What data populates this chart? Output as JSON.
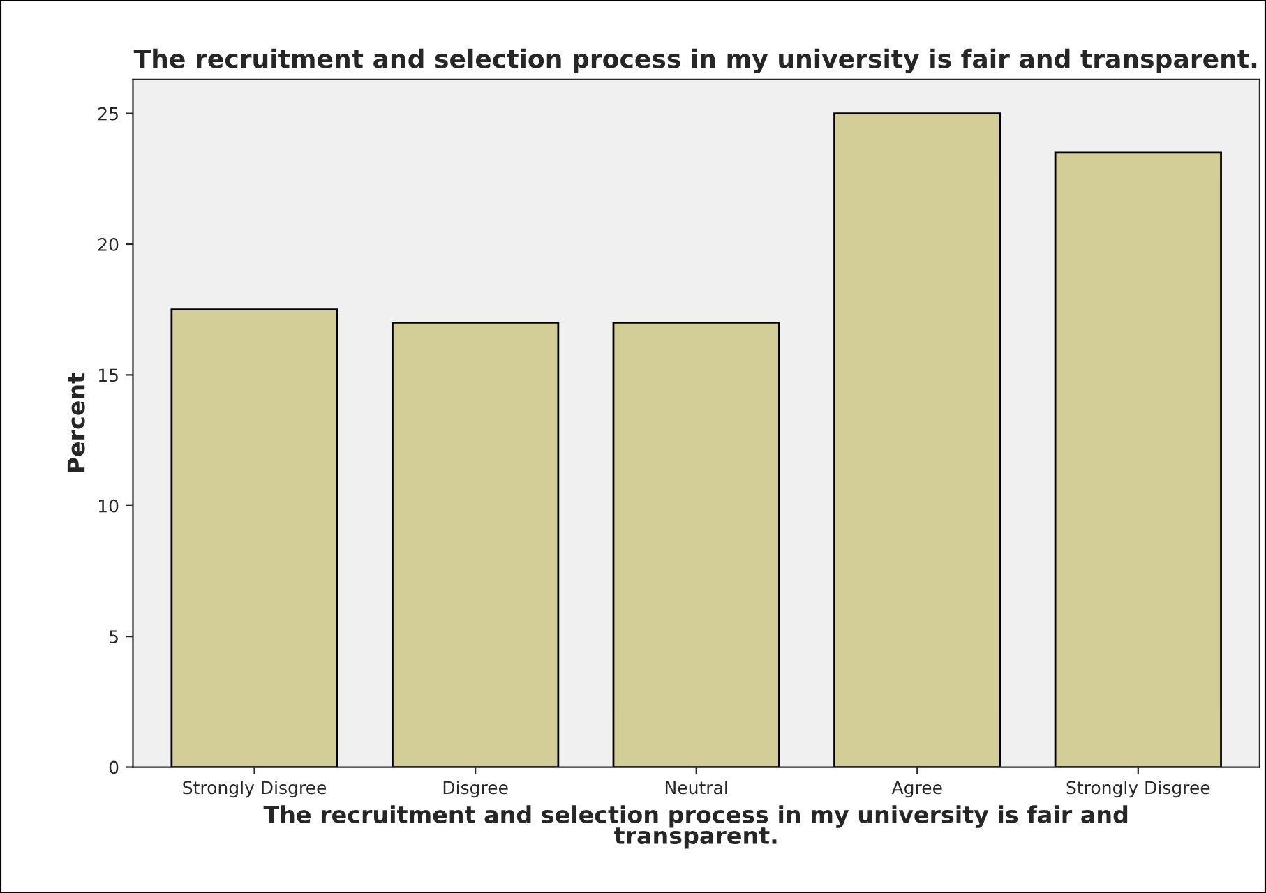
{
  "chart_data": {
    "type": "bar",
    "title": "The recruitment and selection process in my university is fair and transparent.",
    "xlabel": "The recruitment and selection process in my university is fair and\ntransparent.",
    "ylabel": "Percent",
    "categories": [
      "Strongly Disgree",
      "Disgree",
      "Neutral",
      "Agree",
      "Strongly Disgree"
    ],
    "values": [
      17.5,
      17.0,
      17.0,
      25.0,
      23.5
    ],
    "color": "#d3ce98",
    "ylim": [
      0,
      26.3
    ],
    "yticks": [
      0,
      5,
      10,
      15,
      20,
      25
    ],
    "grid": false,
    "legend": false
  }
}
